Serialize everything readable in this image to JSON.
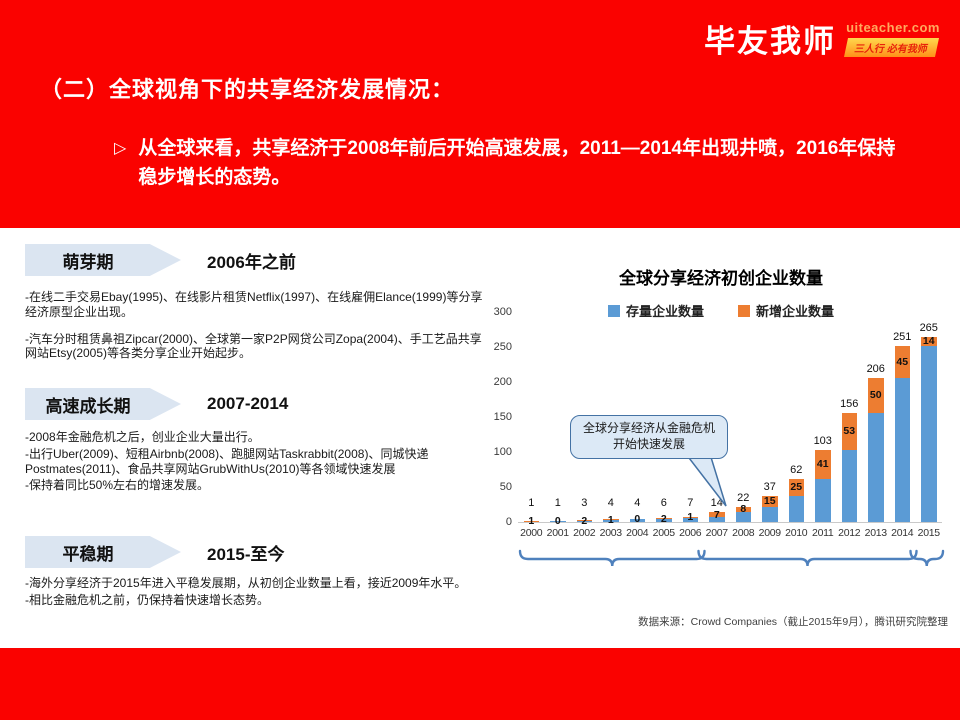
{
  "header": {
    "logo": {
      "brand": "毕友我师",
      "domain": "uiteacher.com",
      "slogan": "三人行 必有我师"
    },
    "title": "（二）全球视角下的共享经济发展情况：",
    "bullet_marker": "▷",
    "bullet": "从全球来看，共享经济于2008年前后开始高速发展，2011—2014年出现井喷，2016年保持稳步增长的态势。"
  },
  "timeline": {
    "phases": [
      {
        "name": "萌芽期",
        "period": "2006年之前",
        "details": [
          "-在线二手交易Ebay(1995)、在线影片租赁Netflix(1997)、在线雇佣Elance(1999)等分享经济原型企业出现。",
          "-汽车分时租赁鼻祖Zipcar(2000)、全球第一家P2P网贷公司Zopa(2004)、手工艺品共享网站Etsy(2005)等各类分享企业开始起步。"
        ]
      },
      {
        "name": "高速成长期",
        "period": "2007-2014",
        "details": [
          "-2008年金融危机之后，创业企业大量出行。",
          "-出行Uber(2009)、短租Airbnb(2008)、跑腿网站Taskrabbit(2008)、同城快递Postmates(2011)、食品共享网站GrubWithUs(2010)等各领域快速发展",
          "-保持着同比50%左右的增速发展。"
        ]
      },
      {
        "name": "平稳期",
        "period": "2015-至今",
        "details": [
          "-海外分享经济于2015年进入平稳发展期，从初创企业数量上看，接近2009年水平。",
          "-相比金融危机之前，仍保持着快速增长态势。"
        ]
      }
    ]
  },
  "chart_data": {
    "type": "bar",
    "stacked": true,
    "title": "全球分享经济初创企业数量",
    "categories": [
      "2000",
      "2001",
      "2002",
      "2003",
      "2004",
      "2005",
      "2006",
      "2007",
      "2008",
      "2009",
      "2010",
      "2011",
      "2012",
      "2013",
      "2014",
      "2015"
    ],
    "series": [
      {
        "name": "存量企业数量",
        "color": "#5b9bd5",
        "values": [
          0,
          1,
          1,
          3,
          4,
          4,
          6,
          7,
          14,
          22,
          37,
          62,
          103,
          156,
          206,
          251
        ]
      },
      {
        "name": "新增企业数量",
        "color": "#ed7d31",
        "values": [
          1,
          0,
          2,
          1,
          0,
          2,
          1,
          7,
          8,
          15,
          25,
          41,
          53,
          50,
          45,
          14
        ]
      }
    ],
    "totals": [
      1,
      1,
      3,
      4,
      4,
      6,
      7,
      14,
      22,
      37,
      62,
      103,
      156,
      206,
      251,
      265
    ],
    "ylim": [
      0,
      300
    ],
    "yticks": [
      0,
      50,
      100,
      150,
      200,
      250,
      300
    ],
    "legend_position": "top",
    "grid": false,
    "annotation": "全球分享经济从金融危机开始快速发展",
    "brackets": [
      {
        "from": 0,
        "to": 6
      },
      {
        "from": 7,
        "to": 14
      },
      {
        "from": 15,
        "to": 15
      }
    ],
    "bracket_color": "#4f81bd",
    "source": "数据来源：Crowd Companies（截止2015年9月），腾讯研究院整理"
  }
}
